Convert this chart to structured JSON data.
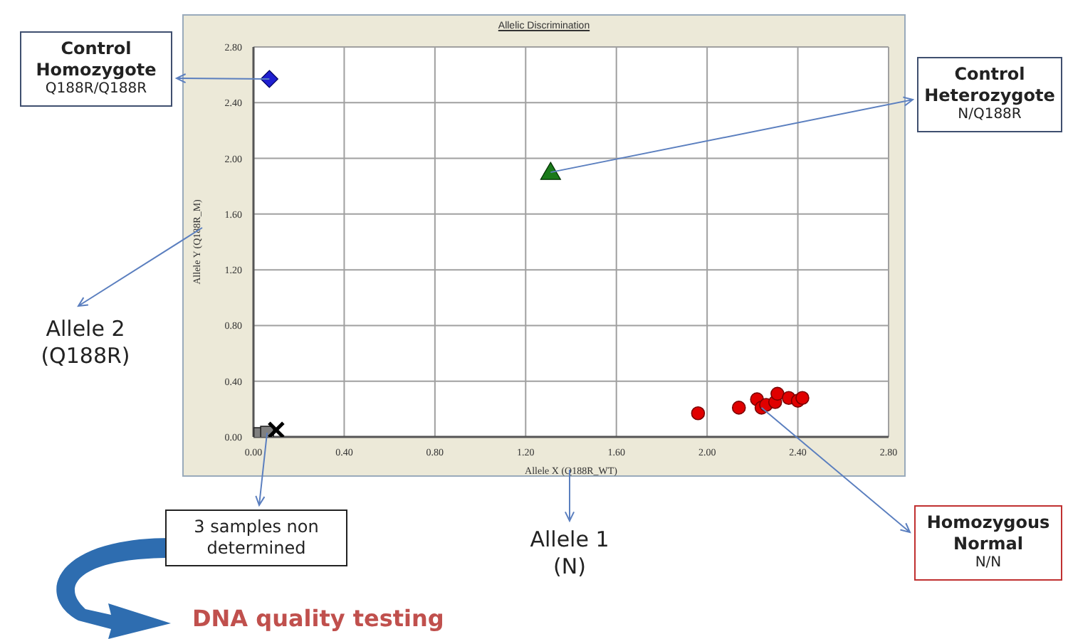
{
  "chart_data": {
    "type": "scatter",
    "title": "Allelic Discrimination",
    "xlabel": "Allele X (Q188R_WT)",
    "ylabel": "Allele Y (Q188R_M)",
    "xlim": [
      0,
      2.8
    ],
    "ylim": [
      0,
      2.8
    ],
    "xticks": [
      {
        "value": 0,
        "label": "0.00"
      },
      {
        "value": 0.4,
        "label": "0.40"
      },
      {
        "value": 0.8,
        "label": "0.80"
      },
      {
        "value": 1.2,
        "label": "1.20"
      },
      {
        "value": 1.6,
        "label": "1.60"
      },
      {
        "value": 2,
        "label": "2.00"
      },
      {
        "value": 2.4,
        "label": "2.40"
      },
      {
        "value": 2.8,
        "label": "2.80"
      }
    ],
    "yticks": [
      {
        "value": 0,
        "label": "0.00"
      },
      {
        "value": 0.4,
        "label": "0.40"
      },
      {
        "value": 0.8,
        "label": "0.80"
      },
      {
        "value": 1.2,
        "label": "1.20"
      },
      {
        "value": 1.6,
        "label": "1.60"
      },
      {
        "value": 2,
        "label": "2.00"
      },
      {
        "value": 2.4,
        "label": "2.40"
      },
      {
        "value": 2.8,
        "label": "2.80"
      }
    ],
    "grid": true,
    "legend": false,
    "series": [
      {
        "color": "#1f1fd0",
        "marker": "diamond",
        "x": [
          0.07
        ],
        "values": [
          2.57
        ]
      },
      {
        "color": "#1a7a1a",
        "marker": "triangle",
        "x": [
          1.31
        ],
        "values": [
          1.9
        ]
      },
      {
        "color": "#e00000",
        "marker": "circle",
        "x": [
          1.96,
          2.14,
          2.22,
          2.24,
          2.26,
          2.3,
          2.31,
          2.36,
          2.4,
          2.42
        ],
        "values": [
          0.17,
          0.21,
          0.27,
          0.21,
          0.23,
          0.25,
          0.31,
          0.28,
          0.26,
          0.28
        ]
      },
      {
        "color": "#808080",
        "marker": "square",
        "x": [
          0.03,
          0.06
        ],
        "values": [
          0.02,
          0.03
        ]
      },
      {
        "color": "#000000",
        "marker": "cross",
        "x": [
          0.1
        ],
        "values": [
          0.05
        ]
      }
    ],
    "annotations": [
      {
        "text": "Control\nHomozygote\nQ188R/Q188R",
        "x": 0.07,
        "y": 2.57
      },
      {
        "text": "Control\nHeterozygote\nN/Q188R",
        "x": 1.31,
        "y": 1.9
      },
      "Allele 2\n(Q188R)",
      {
        "text": "3 samples non\ndetermined",
        "x": 0.06,
        "y": 0.03
      },
      "Allele 1\n(N)",
      {
        "text": "Homozygous\nNormal\nN/N",
        "x": 2.24,
        "y": 0.21
      },
      "DNA quality testing"
    ]
  }
}
